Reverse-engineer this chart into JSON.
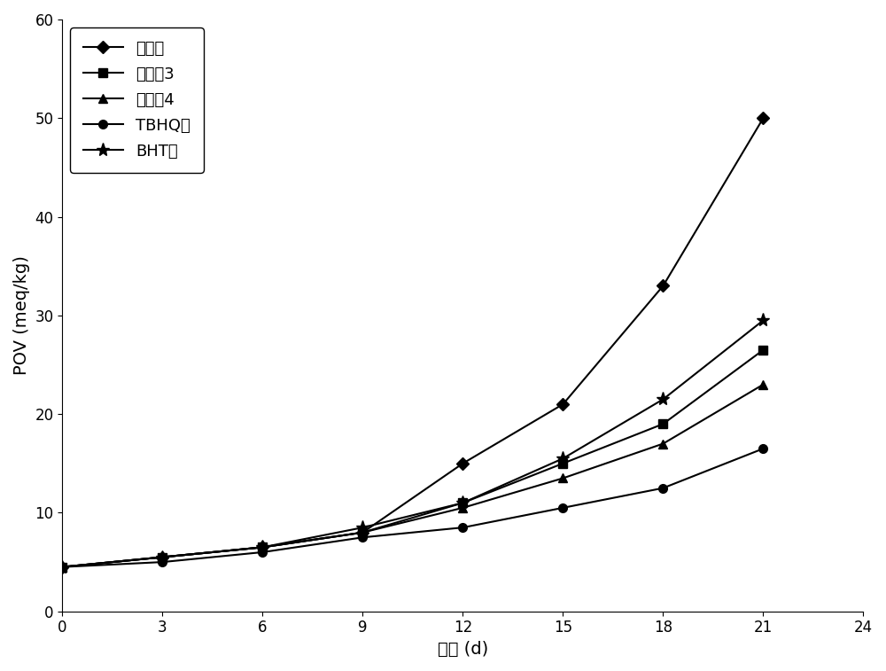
{
  "x": [
    0,
    3,
    6,
    9,
    12,
    15,
    18,
    21
  ],
  "series_order": [
    "空白组",
    "实施例3",
    "实施例4",
    "TBHQ组",
    "BHT组"
  ],
  "series": {
    "空白组": {
      "y": [
        4.5,
        5.5,
        6.5,
        8.0,
        15.0,
        21.0,
        33.0,
        50.0
      ],
      "marker": "D",
      "markersize": 7,
      "label": "空白组"
    },
    "实施例3": {
      "y": [
        4.5,
        5.5,
        6.5,
        8.0,
        11.0,
        15.0,
        19.0,
        26.5
      ],
      "marker": "s",
      "markersize": 7,
      "label": "实施例3"
    },
    "实施例4": {
      "y": [
        4.5,
        5.5,
        6.5,
        8.0,
        10.5,
        13.5,
        17.0,
        23.0
      ],
      "marker": "^",
      "markersize": 7,
      "label": "实施例4"
    },
    "TBHQ组": {
      "y": [
        4.5,
        5.0,
        6.0,
        7.5,
        8.5,
        10.5,
        12.5,
        16.5
      ],
      "marker": "o",
      "markersize": 7,
      "label": "TBHQ组"
    },
    "BHT组": {
      "y": [
        4.5,
        5.5,
        6.5,
        8.5,
        11.0,
        15.5,
        21.5,
        29.5
      ],
      "marker": "*",
      "markersize": 11,
      "label": "BHT组"
    }
  },
  "xlabel": "时间 (d)",
  "ylabel": "POV (meq/kg)",
  "xlim": [
    0,
    24
  ],
  "ylim": [
    0,
    60
  ],
  "xticks": [
    0,
    3,
    6,
    9,
    12,
    15,
    18,
    21,
    24
  ],
  "yticks": [
    0,
    10,
    20,
    30,
    40,
    50,
    60
  ],
  "background_color": "#ffffff",
  "linewidth": 1.5,
  "color": "#000000"
}
